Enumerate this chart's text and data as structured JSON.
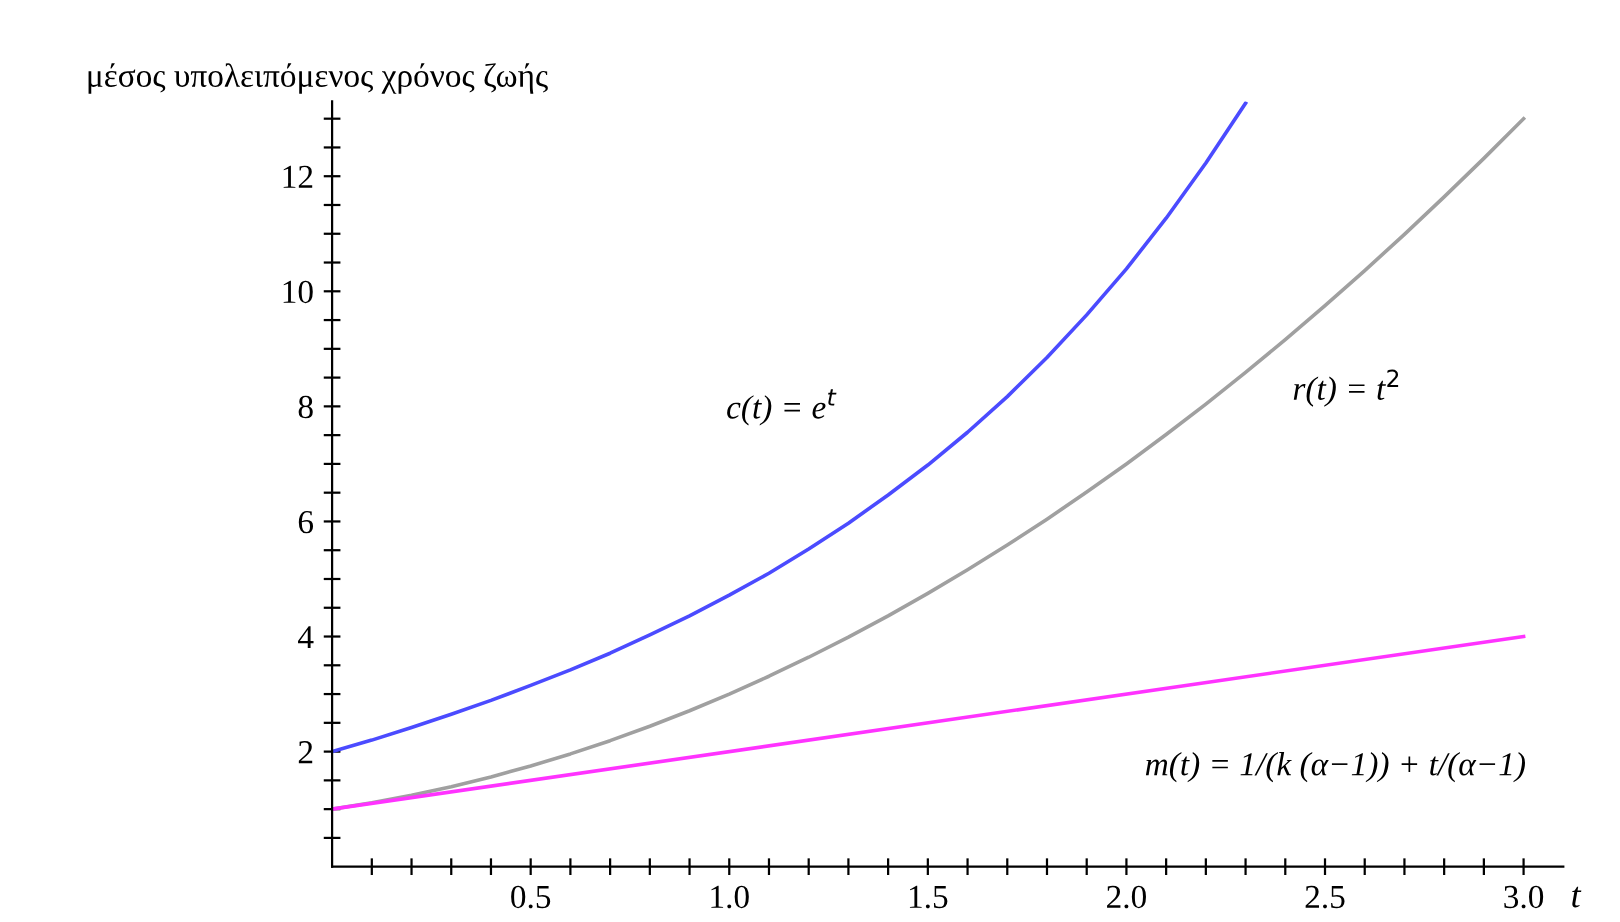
{
  "chart_data": {
    "type": "line",
    "ylabel": "μέσος υπολειπόμενος χρόνος ζωής",
    "xlabel": "t",
    "xlim": [
      0,
      3.1
    ],
    "ylim": [
      0,
      13.3
    ],
    "xticks": [
      {
        "value": 0.1,
        "label": null
      },
      {
        "value": 0.2,
        "label": null
      },
      {
        "value": 0.3,
        "label": null
      },
      {
        "value": 0.4,
        "label": null
      },
      {
        "value": 0.5,
        "label": "0.5"
      },
      {
        "value": 0.6,
        "label": null
      },
      {
        "value": 0.7,
        "label": null
      },
      {
        "value": 0.8,
        "label": null
      },
      {
        "value": 0.9,
        "label": null
      },
      {
        "value": 1.0,
        "label": "1.0"
      },
      {
        "value": 1.1,
        "label": null
      },
      {
        "value": 1.2,
        "label": null
      },
      {
        "value": 1.3,
        "label": null
      },
      {
        "value": 1.4,
        "label": null
      },
      {
        "value": 1.5,
        "label": "1.5"
      },
      {
        "value": 1.6,
        "label": null
      },
      {
        "value": 1.7,
        "label": null
      },
      {
        "value": 1.8,
        "label": null
      },
      {
        "value": 1.9,
        "label": null
      },
      {
        "value": 2.0,
        "label": "2.0"
      },
      {
        "value": 2.1,
        "label": null
      },
      {
        "value": 2.2,
        "label": null
      },
      {
        "value": 2.3,
        "label": null
      },
      {
        "value": 2.4,
        "label": null
      },
      {
        "value": 2.5,
        "label": "2.5"
      },
      {
        "value": 2.6,
        "label": null
      },
      {
        "value": 2.7,
        "label": null
      },
      {
        "value": 2.8,
        "label": null
      },
      {
        "value": 2.9,
        "label": null
      },
      {
        "value": 3.0,
        "label": "3.0"
      }
    ],
    "yticks": [
      {
        "value": 0.5,
        "label": null
      },
      {
        "value": 1,
        "label": null
      },
      {
        "value": 1.5,
        "label": null
      },
      2,
      {
        "value": 2.5,
        "label": null
      },
      {
        "value": 3,
        "label": null
      },
      {
        "value": 3.5,
        "label": null
      },
      4,
      {
        "value": 4.5,
        "label": null
      },
      {
        "value": 5,
        "label": null
      },
      {
        "value": 5.5,
        "label": null
      },
      6,
      {
        "value": 6.5,
        "label": null
      },
      {
        "value": 7,
        "label": null
      },
      {
        "value": 7.5,
        "label": null
      },
      8,
      {
        "value": 8.5,
        "label": null
      },
      {
        "value": 9,
        "label": null
      },
      {
        "value": 9.5,
        "label": null
      },
      10,
      {
        "value": 10.5,
        "label": null
      },
      {
        "value": 11,
        "label": null
      },
      {
        "value": 11.5,
        "label": null
      },
      12,
      {
        "value": 12.5,
        "label": null
      },
      {
        "value": 13,
        "label": null
      }
    ],
    "grid": false,
    "legend": false,
    "marker": "none",
    "line_style": "solid",
    "series": [
      {
        "name": "c(t) = e$^{t}$",
        "color": "#4b4bff",
        "x": [
          0,
          0.1,
          0.2,
          0.3,
          0.4,
          0.5,
          0.6,
          0.7,
          0.8,
          0.9,
          1.0,
          1.1,
          1.2,
          1.3,
          1.4,
          1.5,
          1.6,
          1.7,
          1.8,
          1.9,
          2.0,
          2.1,
          2.2,
          2.3
        ],
        "values": [
          2,
          2.2,
          2.42,
          2.65,
          2.89,
          3.15,
          3.42,
          3.71,
          4.03,
          4.36,
          4.72,
          5.1,
          5.52,
          5.97,
          6.46,
          6.98,
          7.55,
          8.17,
          8.85,
          9.59,
          10.39,
          11.27,
          12.23,
          13.27
        ]
      },
      {
        "name": "r(t) = t$^{2}$",
        "color": "#a0a0a0",
        "x": [
          0,
          0.1,
          0.2,
          0.3,
          0.4,
          0.5,
          0.6,
          0.7,
          0.8,
          0.9,
          1.0,
          1.1,
          1.2,
          1.3,
          1.4,
          1.5,
          1.6,
          1.7,
          1.8,
          1.9,
          2.0,
          2.1,
          2.2,
          2.3,
          2.4,
          2.5,
          2.6,
          2.7,
          2.8,
          2.9,
          3.0
        ],
        "values": [
          1,
          1.11,
          1.24,
          1.39,
          1.56,
          1.75,
          1.96,
          2.19,
          2.44,
          2.71,
          3,
          3.31,
          3.64,
          3.99,
          4.36,
          4.75,
          5.16,
          5.59,
          6.04,
          6.51,
          7,
          7.51,
          8.04,
          8.59,
          9.16,
          9.75,
          10.36,
          10.99,
          11.64,
          12.31,
          13
        ]
      },
      {
        "name": "m(t) = 1/(k (α−1)) + t/(α−1)",
        "color": "#ff33ff",
        "x": [
          0,
          3.0
        ],
        "values": [
          1,
          4
        ]
      }
    ]
  }
}
